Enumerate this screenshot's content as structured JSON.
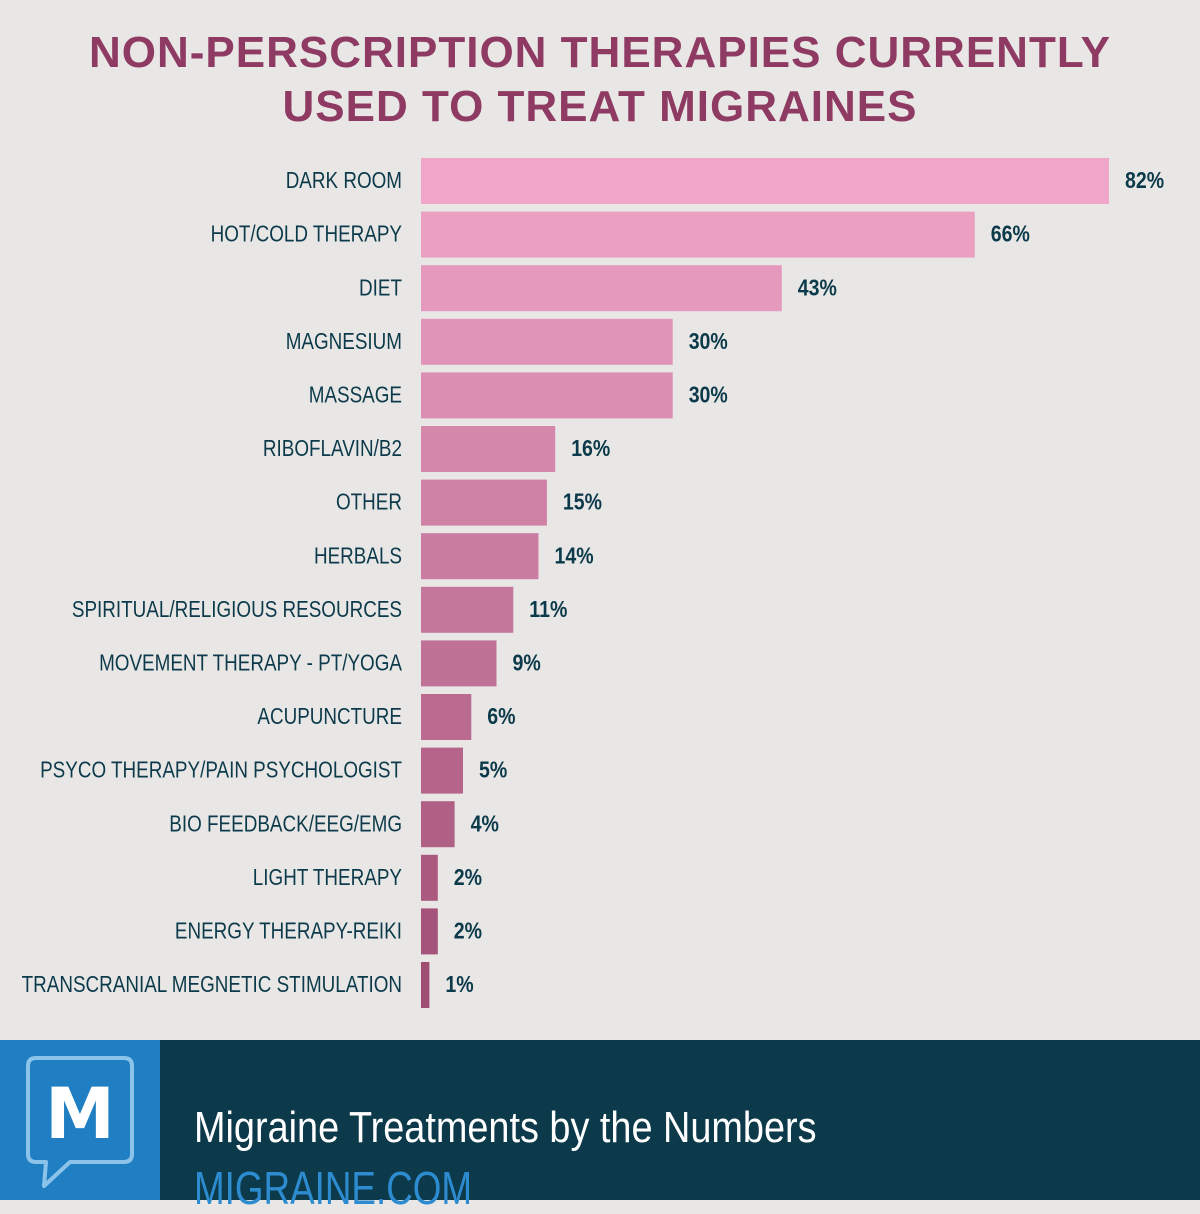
{
  "chart_data": {
    "type": "bar",
    "orientation": "horizontal",
    "title_lines": [
      "NON-PERSCRIPTION THERAPIES CURRENTLY",
      "USED TO TREAT MIGRAINES"
    ],
    "categories": [
      "DARK ROOM",
      "HOT/COLD THERAPY",
      "DIET",
      "MAGNESIUM",
      "MASSAGE",
      "RIBOFLAVIN/B2",
      "OTHER",
      "HERBALS",
      "SPIRITUAL/RELIGIOUS RESOURCES",
      "MOVEMENT THERAPY - PT/YOGA",
      "ACUPUNCTURE",
      "PSYCO THERAPY/PAIN PSYCHOLOGIST",
      "BIO FEEDBACK/EEG/EMG",
      "LIGHT THERAPY",
      "ENERGY THERAPY-REIKI",
      "TRANSCRANIAL MEGNETIC STIMULATION"
    ],
    "values": [
      82,
      66,
      43,
      30,
      30,
      16,
      15,
      14,
      11,
      9,
      6,
      5,
      4,
      2,
      2,
      1
    ],
    "value_labels": [
      "82%",
      "66%",
      "43%",
      "30%",
      "30%",
      "16%",
      "15%",
      "14%",
      "11%",
      "9%",
      "6%",
      "5%",
      "4%",
      "2%",
      "2%",
      "1%"
    ],
    "value_unit": "%",
    "xlim": [
      0,
      82
    ],
    "grid": false,
    "legend": "none",
    "colors": {
      "bar_top": "#f0a6c8",
      "bar_bottom": "#a04d74",
      "label": "#0c3a4a",
      "title": "#8e3a62",
      "background": "#e8e7e6"
    }
  },
  "footer": {
    "logo_letter": "M",
    "title": "Migraine Treatments by the Numbers",
    "url": "MIGRAINE.COM",
    "colors": {
      "background": "#0c3a4a",
      "logo_bg": "#1f7fc2",
      "url": "#2d8bd0"
    }
  }
}
